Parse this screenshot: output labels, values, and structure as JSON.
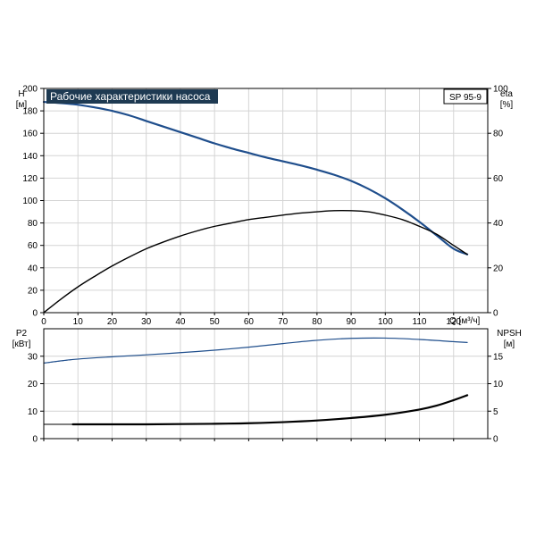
{
  "colors": {
    "blue": "#1f4e8c",
    "black": "#000000",
    "title_bg": "#1e3a52",
    "grid": "#d4d4d4"
  },
  "title": "Рабочие характеристики насоса",
  "model": "SP 95-9",
  "axes": {
    "h_label": "H",
    "h_unit": "[м]",
    "eta_label": "eta",
    "eta_unit": "[%]",
    "q_label": "Q [м³/ч]",
    "p2_label": "P2",
    "p2_unit": "[кВт]",
    "npsh_label": "NPSH",
    "npsh_unit": "[м]"
  },
  "chart_data": [
    {
      "type": "line",
      "xlabel": "Q [м³/ч]",
      "ylabel": "H [м]",
      "y2label": "eta [%]",
      "xlim": [
        0,
        130
      ],
      "ylim": [
        0,
        200
      ],
      "y2lim": [
        0,
        100
      ],
      "x_ticks": [
        0,
        10,
        20,
        30,
        40,
        50,
        60,
        70,
        80,
        90,
        100,
        110,
        120
      ],
      "y_ticks": [
        0,
        20,
        40,
        60,
        80,
        100,
        120,
        140,
        160,
        180,
        200
      ],
      "y2_ticks": [
        0,
        20,
        40,
        60,
        80,
        100
      ],
      "grid": true,
      "series": [
        {
          "key": "H",
          "axis": "left",
          "color": "#1f4e8c",
          "width": 2.2,
          "x": [
            0,
            8.5,
            15,
            20,
            25,
            30,
            35,
            40,
            45,
            50,
            55,
            60,
            65,
            70,
            75,
            80,
            85,
            90,
            95,
            100,
            105,
            110,
            115,
            120,
            124
          ],
          "y": [
            188,
            186,
            183,
            180,
            176,
            171,
            166,
            161,
            156,
            151,
            146.5,
            142.5,
            138.5,
            135,
            131.5,
            127.5,
            123,
            117.5,
            110.5,
            102,
            92,
            81,
            69,
            57,
            52
          ]
        },
        {
          "key": "H_cont",
          "axis": "left",
          "color": "#1f4e8c",
          "width": 1,
          "x": [
            0,
            8.5
          ],
          "y": [
            188,
            186
          ]
        },
        {
          "key": "eta",
          "axis": "right",
          "color": "#000000",
          "width": 1.4,
          "x": [
            0,
            5,
            10,
            15,
            20,
            25,
            30,
            35,
            40,
            45,
            50,
            55,
            60,
            65,
            70,
            75,
            80,
            85,
            90,
            95,
            100,
            105,
            110,
            115,
            120,
            124
          ],
          "y": [
            0,
            6,
            11.5,
            16.3,
            20.8,
            24.8,
            28.5,
            31.5,
            34.2,
            36.5,
            38.5,
            40,
            41.5,
            42.5,
            43.5,
            44.4,
            45,
            45.5,
            45.5,
            45,
            43.5,
            41.5,
            38.5,
            35,
            30,
            26
          ]
        }
      ]
    },
    {
      "type": "line",
      "xlabel": "Q [м³/ч]",
      "ylabel": "P2 [кВт]",
      "y2label": "NPSH [м]",
      "xlim": [
        0,
        130
      ],
      "ylim": [
        0,
        40
      ],
      "y2lim": [
        0,
        20
      ],
      "y_ticks": [
        0,
        10,
        20,
        30
      ],
      "y2_ticks": [
        0,
        5,
        10,
        15
      ],
      "grid": true,
      "series": [
        {
          "key": "P2",
          "axis": "left",
          "color": "#1f4e8c",
          "width": 1.2,
          "x": [
            0,
            8.5,
            20,
            30,
            40,
            50,
            60,
            70,
            80,
            90,
            100,
            110,
            120,
            124
          ],
          "y": [
            27.5,
            28.8,
            29.8,
            30.5,
            31.3,
            32.2,
            33.3,
            34.6,
            35.8,
            36.5,
            36.6,
            36.1,
            35.3,
            35
          ]
        },
        {
          "key": "P2_cont",
          "axis": "left",
          "color": "#1f4e8c",
          "width": 1,
          "x": [
            0,
            8.5
          ],
          "y": [
            27.5,
            28.8
          ]
        },
        {
          "key": "NPSH",
          "axis": "right",
          "color": "#000000",
          "width": 2.2,
          "x": [
            8.5,
            20,
            30,
            40,
            50,
            60,
            70,
            80,
            90,
            100,
            110,
            115,
            120,
            124
          ],
          "y": [
            2.6,
            2.6,
            2.6,
            2.65,
            2.7,
            2.8,
            3.0,
            3.3,
            3.75,
            4.35,
            5.3,
            6.0,
            7.0,
            7.9
          ]
        },
        {
          "key": "NPSH_cont",
          "axis": "right",
          "color": "#000000",
          "width": 1,
          "x": [
            0,
            8.5
          ],
          "y": [
            2.6,
            2.6
          ]
        }
      ]
    }
  ]
}
